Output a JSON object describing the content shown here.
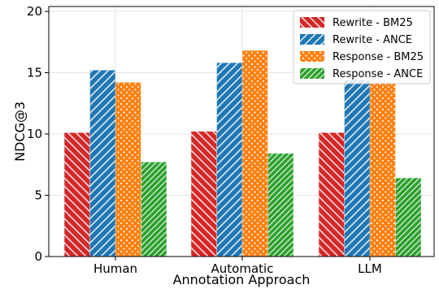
{
  "chart_data": {
    "type": "bar",
    "xlabel": "Annotation Approach",
    "ylabel": "NDCG@3",
    "ylim": [
      0,
      20.4
    ],
    "yticks": [
      0,
      5,
      10,
      15,
      20
    ],
    "grid": true,
    "legend_position": "top-right",
    "categories": [
      "Human",
      "Automatic",
      "LLM"
    ],
    "series": [
      {
        "name": "Rewrite - BM25",
        "color": "#d62728",
        "hatch": "diagonal-back",
        "values": [
          10.1,
          10.2,
          10.1
        ]
      },
      {
        "name": "Rewrite - ANCE",
        "color": "#1f77b4",
        "hatch": "diagonal-forward",
        "values": [
          15.2,
          15.8,
          14.4
        ]
      },
      {
        "name": "Response - BM25",
        "color": "#ff7f0e",
        "hatch": "dots",
        "values": [
          14.2,
          16.8,
          14.2
        ]
      },
      {
        "name": "Response - ANCE",
        "color": "#2ca02c",
        "hatch": "diagonal-forward-dense",
        "values": [
          7.7,
          8.4,
          6.4
        ]
      }
    ]
  }
}
